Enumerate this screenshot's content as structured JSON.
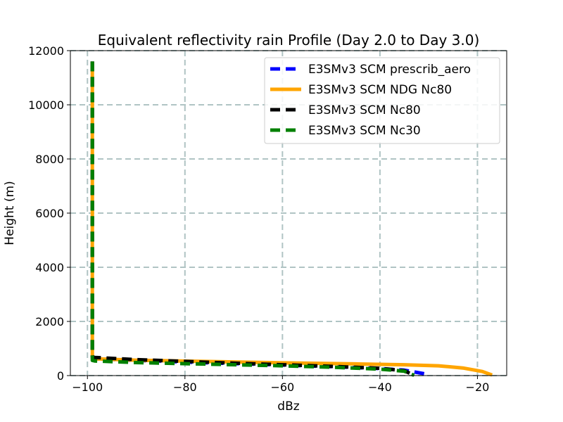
{
  "chart_data": {
    "type": "line",
    "title": "Equivalent reflectivity rain Profile (Day 2.0 to Day 3.0)",
    "xlabel": "dBz",
    "ylabel": "Height (m)",
    "xlim": [
      -103.5,
      -14
    ],
    "ylim": [
      0,
      12000
    ],
    "xticks": [
      -100,
      -80,
      -60,
      -40,
      -20
    ],
    "yticks": [
      0,
      2000,
      4000,
      6000,
      8000,
      10000,
      12000
    ],
    "grid": true,
    "legend_position": "top-right",
    "series": [
      {
        "name": "E3SMv3 SCM prescrib_aero",
        "color": "#0000ff",
        "style": "dashed",
        "x": [
          -99,
          -99,
          -99,
          -99,
          -99,
          -98.5,
          -90,
          -75,
          -60,
          -50,
          -40,
          -35,
          -30
        ],
        "y": [
          11600,
          8000,
          4000,
          1500,
          650,
          620,
          560,
          470,
          390,
          330,
          260,
          200,
          40
        ]
      },
      {
        "name": "E3SMv3 SCM NDG Nc80",
        "color": "#ffa500",
        "style": "solid",
        "x": [
          -99,
          -99,
          -99,
          -99,
          -99,
          -98.5,
          -90,
          -75,
          -60,
          -45,
          -35,
          -28,
          -23,
          -19,
          -17
        ],
        "y": [
          11600,
          8000,
          4000,
          1500,
          650,
          620,
          570,
          520,
          470,
          430,
          400,
          360,
          280,
          150,
          20
        ]
      },
      {
        "name": "E3SMv3 SCM Nc80",
        "color": "#000000",
        "style": "dashed",
        "x": [
          -99,
          -99,
          -99,
          -99,
          -99,
          -98.5,
          -90,
          -75,
          -60,
          -50,
          -40,
          -35,
          -33
        ],
        "y": [
          11600,
          8000,
          4000,
          1500,
          700,
          670,
          590,
          490,
          400,
          340,
          270,
          180,
          10
        ]
      },
      {
        "name": "E3SMv3 SCM Nc30",
        "color": "#008000",
        "style": "dashed",
        "x": [
          -99,
          -99,
          -99,
          -99,
          -99,
          -98.5,
          -90,
          -75,
          -60,
          -50,
          -40,
          -35,
          -33
        ],
        "y": [
          11600,
          8000,
          4000,
          1500,
          560,
          540,
          480,
          420,
          360,
          310,
          240,
          160,
          10
        ]
      }
    ]
  }
}
